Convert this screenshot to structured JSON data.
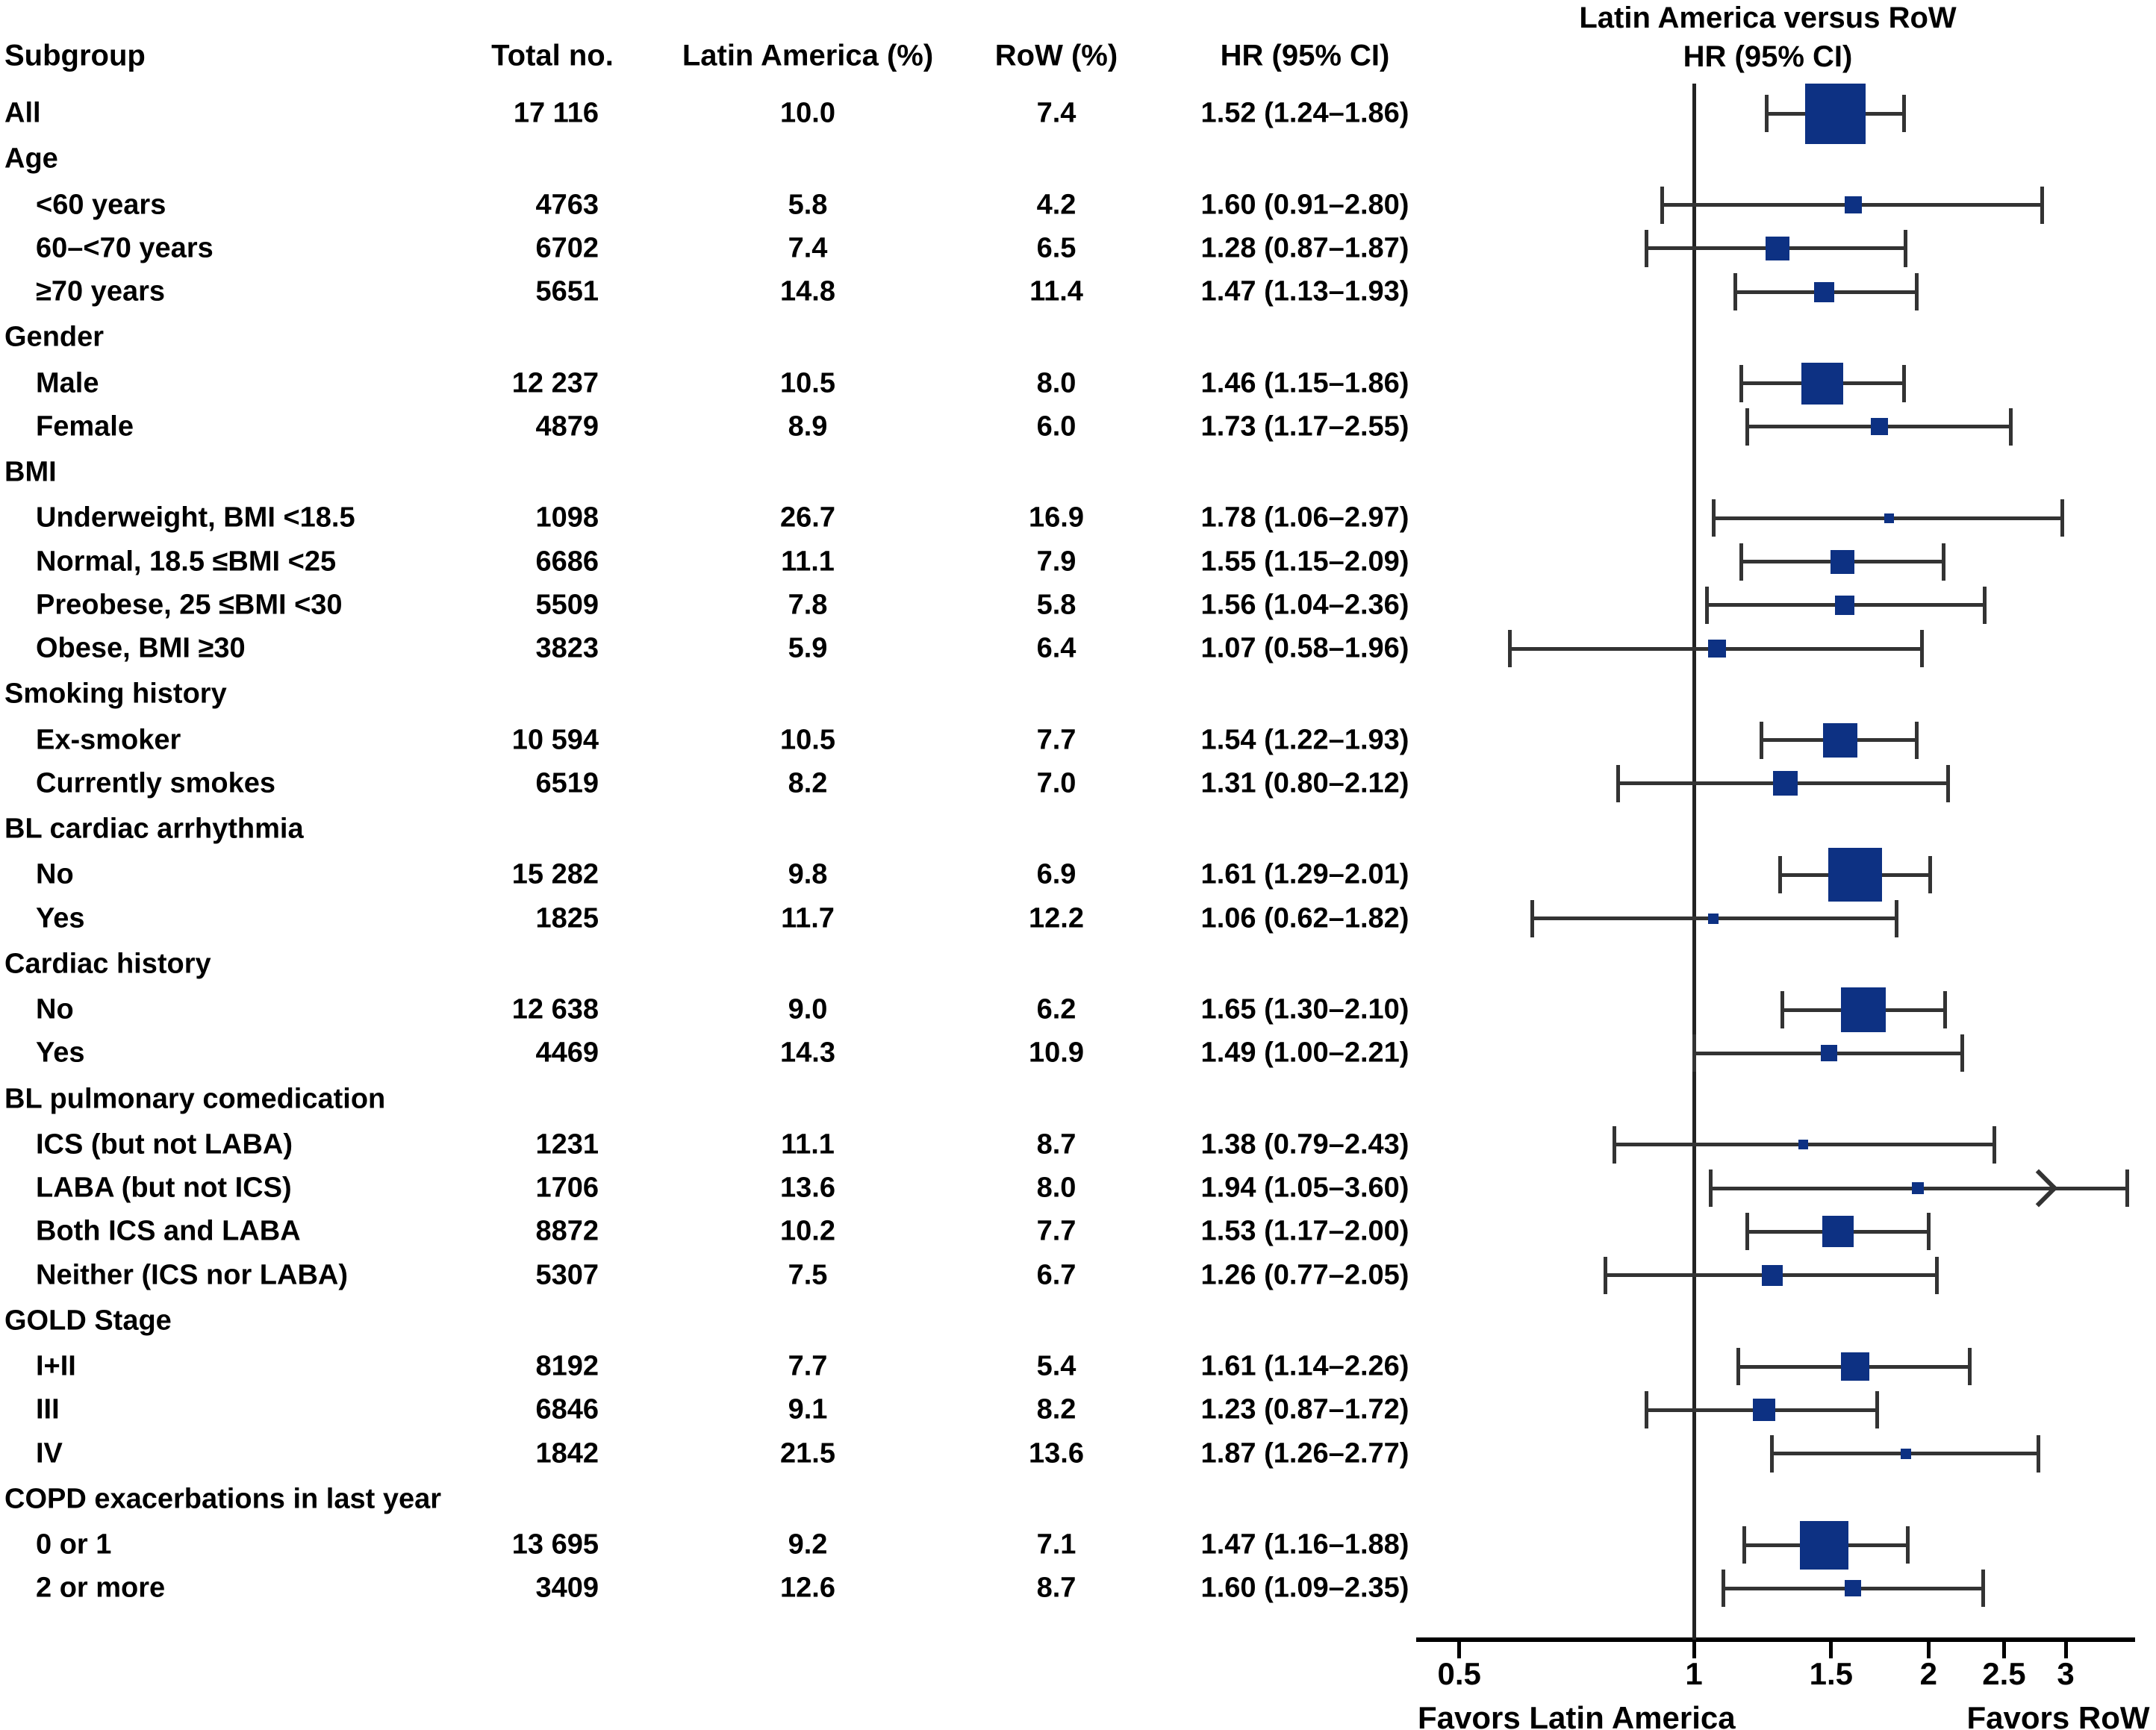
{
  "table": {
    "headers": {
      "subgroup": "Subgroup",
      "total": "Total no.",
      "latin_america": "Latin America (%)",
      "row": "RoW (%)",
      "hr_ci": "HR (95% CI)"
    }
  },
  "plot": {
    "title_line1": "Latin America versus RoW",
    "title_line2": "HR (95% CI)",
    "favors_left": "Favors Latin America",
    "favors_right": "Favors RoW",
    "box_color": "#0d3183",
    "line_color": "#333333",
    "axis_ticks": [
      {
        "label": "0.5",
        "value": 0.5
      },
      {
        "label": "1",
        "value": 1
      },
      {
        "label": "1.5",
        "value": 1.5
      },
      {
        "label": "2",
        "value": 2
      },
      {
        "label": "2.5",
        "value": 2.5
      },
      {
        "label": "3",
        "value": 3
      }
    ]
  },
  "chart_data": {
    "type": "forest",
    "x_scale": "log10",
    "x_axis": {
      "ticks": [
        0.5,
        1,
        1.5,
        2,
        2.5,
        3
      ],
      "reference_value": 1,
      "label_left": "Favors Latin America",
      "label_right": "Favors RoW"
    },
    "columns": [
      "Subgroup",
      "Total no.",
      "Latin America (%)",
      "RoW (%)",
      "HR (95% CI)"
    ],
    "rows": [
      {
        "type": "data",
        "label": "All",
        "indent": false,
        "total": "17 116",
        "latin_america": "10.0",
        "row_pct": "7.4",
        "hr_text": "1.52 (1.24–1.86)",
        "hr": 1.52,
        "lo": 1.24,
        "hi": 1.86,
        "weight": 81
      },
      {
        "type": "header",
        "label": "Age"
      },
      {
        "type": "data",
        "label": "<60 years",
        "indent": true,
        "total": "4763",
        "latin_america": "5.8",
        "row_pct": "4.2",
        "hr_text": "1.60 (0.91–2.80)",
        "hr": 1.6,
        "lo": 0.91,
        "hi": 2.8,
        "weight": 23
      },
      {
        "type": "data",
        "label": "60–<70 years",
        "indent": true,
        "total": "6702",
        "latin_america": "7.4",
        "row_pct": "6.5",
        "hr_text": "1.28 (0.87–1.87)",
        "hr": 1.28,
        "lo": 0.87,
        "hi": 1.87,
        "weight": 32
      },
      {
        "type": "data",
        "label": "≥70 years",
        "indent": true,
        "total": "5651",
        "latin_america": "14.8",
        "row_pct": "11.4",
        "hr_text": "1.47 (1.13–1.93)",
        "hr": 1.47,
        "lo": 1.13,
        "hi": 1.93,
        "weight": 27
      },
      {
        "type": "header",
        "label": "Gender"
      },
      {
        "type": "data",
        "label": "Male",
        "indent": true,
        "total": "12 237",
        "latin_america": "10.5",
        "row_pct": "8.0",
        "hr_text": "1.46 (1.15–1.86)",
        "hr": 1.46,
        "lo": 1.15,
        "hi": 1.86,
        "weight": 56
      },
      {
        "type": "data",
        "label": "Female",
        "indent": true,
        "total": "4879",
        "latin_america": "8.9",
        "row_pct": "6.0",
        "hr_text": "1.73 (1.17–2.55)",
        "hr": 1.73,
        "lo": 1.17,
        "hi": 2.55,
        "weight": 23
      },
      {
        "type": "header",
        "label": "BMI"
      },
      {
        "type": "data",
        "label": "Underweight, BMI <18.5",
        "indent": true,
        "total": "1098",
        "latin_america": "26.7",
        "row_pct": "16.9",
        "hr_text": "1.78 (1.06–2.97)",
        "hr": 1.78,
        "lo": 1.06,
        "hi": 2.97,
        "weight": 13
      },
      {
        "type": "data",
        "label": "Normal, 18.5 ≤BMI <25",
        "indent": true,
        "total": "6686",
        "latin_america": "11.1",
        "row_pct": "7.9",
        "hr_text": "1.55 (1.15–2.09)",
        "hr": 1.55,
        "lo": 1.15,
        "hi": 2.09,
        "weight": 32
      },
      {
        "type": "data",
        "label": "Preobese, 25 ≤BMI <30",
        "indent": true,
        "total": "5509",
        "latin_america": "7.8",
        "row_pct": "5.8",
        "hr_text": "1.56 (1.04–2.36)",
        "hr": 1.56,
        "lo": 1.04,
        "hi": 2.36,
        "weight": 26
      },
      {
        "type": "data",
        "label": "Obese, BMI ≥30",
        "indent": true,
        "total": "3823",
        "latin_america": "5.9",
        "row_pct": "6.4",
        "hr_text": "1.07 (0.58–1.96)",
        "hr": 1.07,
        "lo": 0.58,
        "hi": 1.96,
        "weight": 24
      },
      {
        "type": "header",
        "label": "Smoking history"
      },
      {
        "type": "data",
        "label": "Ex-smoker",
        "indent": true,
        "total": "10 594",
        "latin_america": "10.5",
        "row_pct": "7.7",
        "hr_text": "1.54 (1.22–1.93)",
        "hr": 1.54,
        "lo": 1.22,
        "hi": 1.93,
        "weight": 46
      },
      {
        "type": "data",
        "label": "Currently smokes",
        "indent": true,
        "total": "6519",
        "latin_america": "8.2",
        "row_pct": "7.0",
        "hr_text": "1.31 (0.80–2.12)",
        "hr": 1.31,
        "lo": 0.8,
        "hi": 2.12,
        "weight": 33
      },
      {
        "type": "header",
        "label": "BL cardiac arrhythmia"
      },
      {
        "type": "data",
        "label": "No",
        "indent": true,
        "total": "15 282",
        "latin_america": "9.8",
        "row_pct": "6.9",
        "hr_text": "1.61 (1.29–2.01)",
        "hr": 1.61,
        "lo": 1.29,
        "hi": 2.01,
        "weight": 72
      },
      {
        "type": "data",
        "label": "Yes",
        "indent": true,
        "total": "1825",
        "latin_america": "11.7",
        "row_pct": "12.2",
        "hr_text": "1.06 (0.62–1.82)",
        "hr": 1.06,
        "lo": 0.62,
        "hi": 1.82,
        "weight": 14
      },
      {
        "type": "header",
        "label": "Cardiac history"
      },
      {
        "type": "data",
        "label": "No",
        "indent": true,
        "total": "12 638",
        "latin_america": "9.0",
        "row_pct": "6.2",
        "hr_text": "1.65 (1.30–2.10)",
        "hr": 1.65,
        "lo": 1.3,
        "hi": 2.1,
        "weight": 60
      },
      {
        "type": "data",
        "label": "Yes",
        "indent": true,
        "total": "4469",
        "latin_america": "14.3",
        "row_pct": "10.9",
        "hr_text": "1.49 (1.00–2.21)",
        "hr": 1.49,
        "lo": 1.0,
        "hi": 2.21,
        "weight": 22
      },
      {
        "type": "header",
        "label": "BL pulmonary comedication"
      },
      {
        "type": "data",
        "label": "ICS (but not LABA)",
        "indent": true,
        "total": "1231",
        "latin_america": "11.1",
        "row_pct": "8.7",
        "hr_text": "1.38 (0.79–2.43)",
        "hr": 1.38,
        "lo": 0.79,
        "hi": 2.43,
        "weight": 13
      },
      {
        "type": "data",
        "label": "LABA (but not ICS)",
        "indent": true,
        "total": "1706",
        "latin_america": "13.6",
        "row_pct": "8.0",
        "hr_text": "1.94 (1.05–3.60)",
        "hr": 1.94,
        "lo": 1.05,
        "hi": 3.6,
        "weight": 16,
        "arrow_at": 2.77
      },
      {
        "type": "data",
        "label": "Both ICS and LABA",
        "indent": true,
        "total": "8872",
        "latin_america": "10.2",
        "row_pct": "7.7",
        "hr_text": "1.53 (1.17–2.00)",
        "hr": 1.53,
        "lo": 1.17,
        "hi": 2.0,
        "weight": 42
      },
      {
        "type": "data",
        "label": "Neither (ICS nor LABA)",
        "indent": true,
        "total": "5307",
        "latin_america": "7.5",
        "row_pct": "6.7",
        "hr_text": "1.26 (0.77–2.05)",
        "hr": 1.26,
        "lo": 0.77,
        "hi": 2.05,
        "weight": 28
      },
      {
        "type": "header",
        "label": "GOLD Stage"
      },
      {
        "type": "data",
        "label": "I+II",
        "indent": true,
        "total": "8192",
        "latin_america": "7.7",
        "row_pct": "5.4",
        "hr_text": "1.61 (1.14–2.26)",
        "hr": 1.61,
        "lo": 1.14,
        "hi": 2.26,
        "weight": 38
      },
      {
        "type": "data",
        "label": "III",
        "indent": true,
        "total": "6846",
        "latin_america": "9.1",
        "row_pct": "8.2",
        "hr_text": "1.23 (0.87–1.72)",
        "hr": 1.23,
        "lo": 0.87,
        "hi": 1.72,
        "weight": 30
      },
      {
        "type": "data",
        "label": "IV",
        "indent": true,
        "total": "1842",
        "latin_america": "21.5",
        "row_pct": "13.6",
        "hr_text": "1.87 (1.26–2.77)",
        "hr": 1.87,
        "lo": 1.26,
        "hi": 2.77,
        "weight": 14
      },
      {
        "type": "header",
        "label": "COPD exacerbations in last year"
      },
      {
        "type": "data",
        "label": "0 or 1",
        "indent": true,
        "total": "13 695",
        "latin_america": "9.2",
        "row_pct": "7.1",
        "hr_text": "1.47 (1.16–1.88)",
        "hr": 1.47,
        "lo": 1.16,
        "hi": 1.88,
        "weight": 65
      },
      {
        "type": "data",
        "label": "2 or more",
        "indent": true,
        "total": "3409",
        "latin_america": "12.6",
        "row_pct": "8.7",
        "hr_text": "1.60 (1.09–2.35)",
        "hr": 1.6,
        "lo": 1.09,
        "hi": 2.35,
        "weight": 22
      }
    ]
  }
}
